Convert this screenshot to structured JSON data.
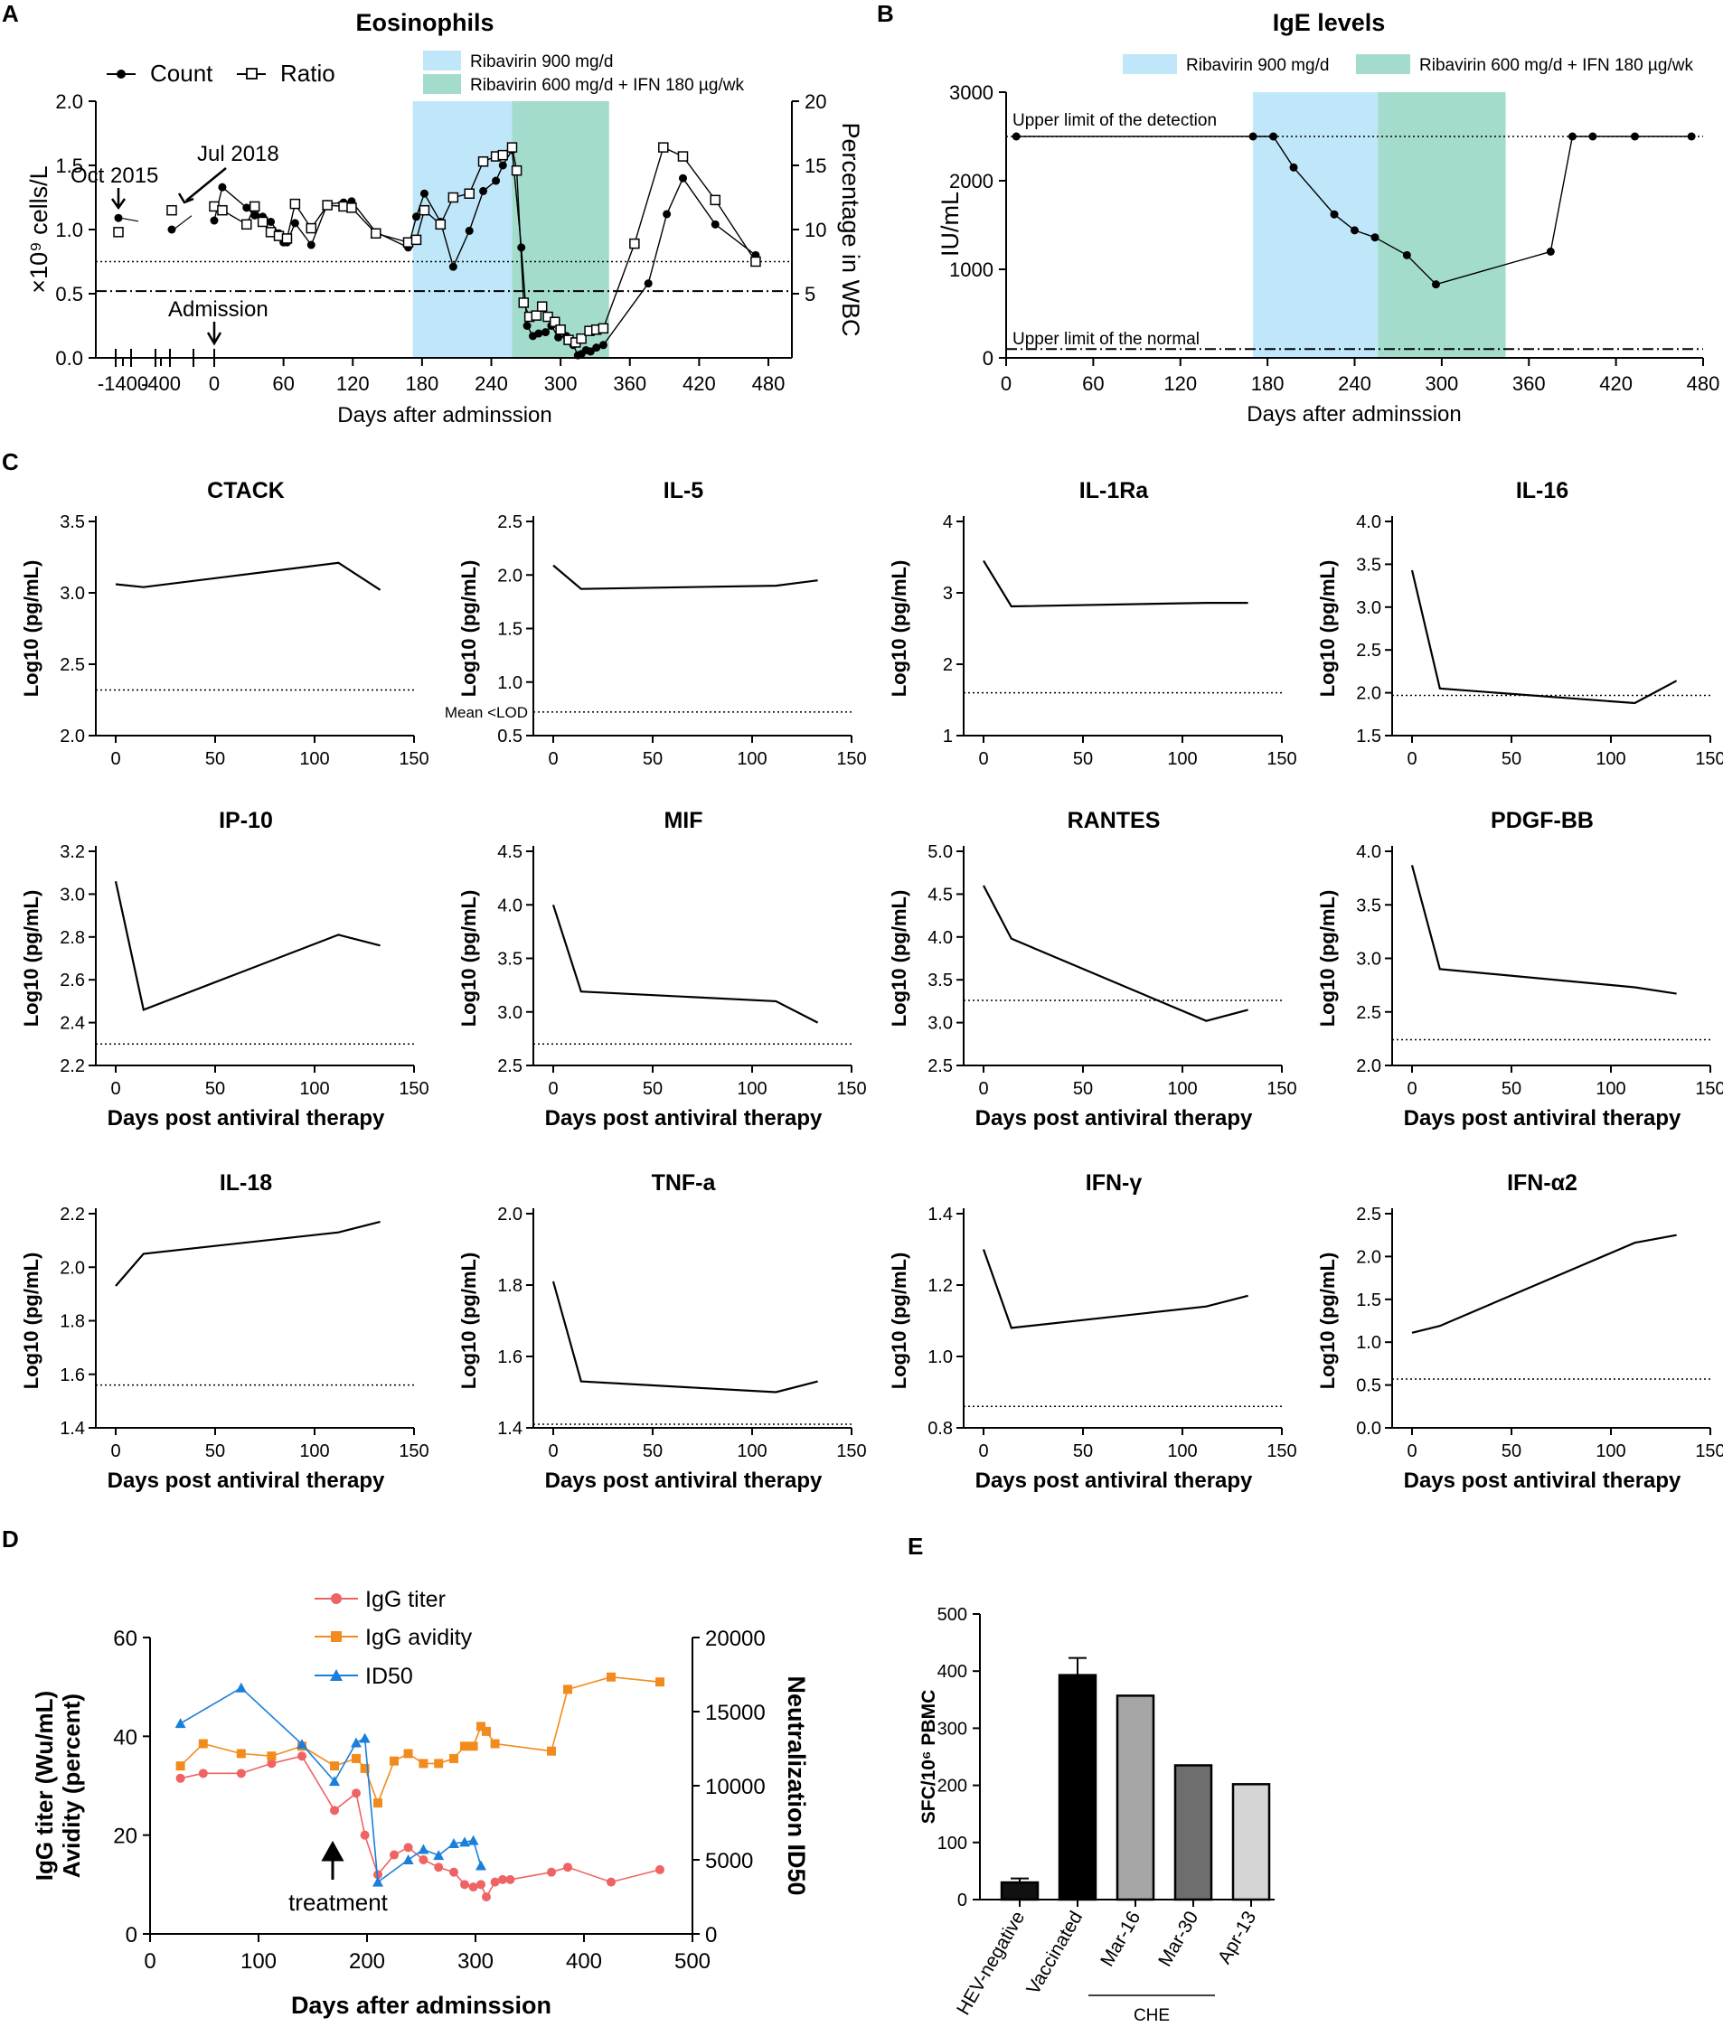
{
  "panel_letters": [
    "A",
    "B",
    "C",
    "D",
    "E"
  ],
  "chart_data": [
    {
      "id": "A",
      "type": "line",
      "title": "Eosinophils",
      "xlabel": "Days after adminssion",
      "ylabel": "×10⁹ cells/L",
      "y2label": "Percentage in WBC",
      "x_tick_labels": [
        "-1400",
        "-400",
        "0",
        "60",
        "120",
        "180",
        "240",
        "300",
        "360",
        "420",
        "480"
      ],
      "ylim": [
        0,
        2.0
      ],
      "yticks": [
        0.0,
        0.5,
        1.0,
        1.5,
        2.0
      ],
      "y2lim": [
        0,
        20
      ],
      "y2ticks": [
        5,
        10,
        15,
        20
      ],
      "legend": [
        "Count",
        "Ratio"
      ],
      "shaded_regions": [
        {
          "label": "Ribavirin 900 mg/d",
          "x": [
            172,
            258
          ],
          "color": "#bfe6f9"
        },
        {
          "label": "Ribavirin 600 mg/d + IFN 180 µg/wk",
          "x": [
            258,
            342
          ],
          "color": "#a3dccd"
        }
      ],
      "reference_lines": [
        {
          "y": 0.75,
          "style": "dotted"
        },
        {
          "y": 0.52,
          "style": "dashdot"
        }
      ],
      "annotations": [
        "Oct 2015",
        "Jul 2018",
        "Admission"
      ],
      "pre_admission_points": [
        {
          "label": "Oct 2015",
          "count": 1.09,
          "ratio_pct": 9.8
        },
        {
          "label": "Jul 2018",
          "count": 1.0,
          "ratio_pct": 11.5
        }
      ],
      "series": [
        {
          "name": "Count",
          "x": [
            0,
            7,
            28,
            35,
            42,
            49,
            56,
            60,
            63,
            70,
            84,
            98,
            112,
            119,
            140,
            168,
            175,
            182,
            196,
            207,
            221,
            233,
            244,
            250,
            258,
            266,
            271,
            276,
            281,
            287,
            292,
            298,
            305,
            311,
            315,
            318,
            322,
            326,
            331,
            337,
            376,
            392,
            406,
            434,
            469
          ],
          "values": [
            1.07,
            1.33,
            1.17,
            1.11,
            1.1,
            1.06,
            0.97,
            0.9,
            0.9,
            1.05,
            0.88,
            1.2,
            1.21,
            1.22,
            0.98,
            0.86,
            1.1,
            1.28,
            1.06,
            0.71,
            0.99,
            1.3,
            1.38,
            1.5,
            1.62,
            0.86,
            0.25,
            0.17,
            0.19,
            0.2,
            0.25,
            0.16,
            0.17,
            0.1,
            0.02,
            0.03,
            0.06,
            0.05,
            0.08,
            0.1,
            0.58,
            1.12,
            1.4,
            1.04,
            0.8
          ]
        },
        {
          "name": "Ratio",
          "x": [
            0,
            7,
            28,
            35,
            42,
            49,
            56,
            63,
            70,
            84,
            98,
            112,
            119,
            140,
            168,
            175,
            182,
            196,
            207,
            221,
            233,
            244,
            250,
            258,
            262,
            268,
            273,
            279,
            284,
            289,
            295,
            300,
            307,
            313,
            318,
            325,
            331,
            337,
            364,
            389,
            406,
            434,
            469
          ],
          "values": [
            11.8,
            11.5,
            10.4,
            11.8,
            10.6,
            9.8,
            9.5,
            9.3,
            12.0,
            10.1,
            11.9,
            11.8,
            11.7,
            9.7,
            9.0,
            9.2,
            11.5,
            10.4,
            12.5,
            12.8,
            15.3,
            15.7,
            15.8,
            16.4,
            14.6,
            4.3,
            3.2,
            3.3,
            4.0,
            3.2,
            2.8,
            2.2,
            1.4,
            1.2,
            1.5,
            2.1,
            2.2,
            2.3,
            8.9,
            16.4,
            15.7,
            12.3,
            7.5
          ]
        }
      ]
    },
    {
      "id": "B",
      "type": "line",
      "title": "IgE levels",
      "xlabel": "Days after adminssion",
      "ylabel": "IU/mL",
      "xlim": [
        0,
        480
      ],
      "xticks": [
        0,
        60,
        120,
        180,
        240,
        300,
        360,
        420,
        480
      ],
      "ylim": [
        0,
        3000
      ],
      "yticks": [
        0,
        1000,
        2000,
        3000
      ],
      "shaded_regions": [
        {
          "label": "Ribavirin 900 mg/d",
          "x": [
            170,
            256
          ],
          "color": "#bfe6f9"
        },
        {
          "label": "Ribavirin 600 mg/d + IFN 180 µg/wk",
          "x": [
            256,
            344
          ],
          "color": "#a3dccd"
        }
      ],
      "reference_lines": [
        {
          "y": 2500,
          "style": "dotted",
          "label": "Upper limit of the detection"
        },
        {
          "y": 100,
          "style": "dashdot",
          "label": "Upper limit of the normal"
        }
      ],
      "series": [
        {
          "name": "IgE",
          "x": [
            7,
            170,
            184,
            198,
            226,
            240,
            254,
            276,
            296,
            375,
            390,
            404,
            433,
            472
          ],
          "values": [
            2500,
            2500,
            2500,
            2150,
            1620,
            1440,
            1360,
            1160,
            830,
            1200,
            2500,
            2500,
            2500,
            2500
          ]
        }
      ]
    },
    {
      "id": "C",
      "type": "line",
      "xlabel": "Days post antiviral therapy",
      "ylabel": "Log10 (pg/mL)",
      "xlim": [
        -10,
        150
      ],
      "xticks": [
        0,
        50,
        100,
        150
      ],
      "panels": [
        {
          "name": "CTACK",
          "ylim": [
            2.0,
            3.5
          ],
          "yticks": [
            2.0,
            2.5,
            3.0,
            3.5
          ],
          "x": [
            0,
            14,
            112,
            133
          ],
          "values": [
            3.06,
            3.04,
            3.21,
            3.02
          ],
          "lod": 2.32
        },
        {
          "name": "IL-5",
          "ylim": [
            0.5,
            2.5
          ],
          "yticks": [
            0.5,
            1.0,
            1.5,
            2.0,
            2.5
          ],
          "x": [
            0,
            14,
            112,
            133
          ],
          "values": [
            2.09,
            1.87,
            1.9,
            1.95
          ],
          "lod": 0.72,
          "lod_label": "Mean <LOD"
        },
        {
          "name": "IL-1Ra",
          "ylim": [
            1,
            4
          ],
          "yticks": [
            1,
            2,
            3,
            4
          ],
          "x": [
            0,
            14,
            112,
            133
          ],
          "values": [
            3.45,
            2.81,
            2.86,
            2.86
          ],
          "lod": 1.6
        },
        {
          "name": "IL-16",
          "ylim": [
            1.5,
            4.0
          ],
          "yticks": [
            1.5,
            2.0,
            2.5,
            3.0,
            3.5,
            4.0
          ],
          "x": [
            0,
            14,
            112,
            133
          ],
          "values": [
            3.43,
            2.05,
            1.88,
            2.14
          ],
          "lod": 1.97
        },
        {
          "name": "IP-10",
          "ylim": [
            2.2,
            3.2
          ],
          "yticks": [
            2.2,
            2.4,
            2.6,
            2.8,
            3.0,
            3.2
          ],
          "x": [
            0,
            14,
            112,
            133
          ],
          "values": [
            3.06,
            2.46,
            2.81,
            2.76
          ],
          "lod": 2.3
        },
        {
          "name": "MIF",
          "ylim": [
            2.5,
            4.5
          ],
          "yticks": [
            2.5,
            3.0,
            3.5,
            4.0,
            4.5
          ],
          "x": [
            0,
            14,
            112,
            133
          ],
          "values": [
            4.0,
            3.19,
            3.1,
            2.9
          ],
          "lod": 2.7
        },
        {
          "name": "RANTES",
          "ylim": [
            2.5,
            5.0
          ],
          "yticks": [
            2.5,
            3.0,
            3.5,
            4.0,
            4.5,
            5.0
          ],
          "x": [
            0,
            14,
            112,
            133
          ],
          "values": [
            4.6,
            3.98,
            3.02,
            3.15
          ],
          "lod": 3.26
        },
        {
          "name": "PDGF-BB",
          "ylim": [
            2.0,
            4.0
          ],
          "yticks": [
            2.0,
            2.5,
            3.0,
            3.5,
            4.0
          ],
          "x": [
            0,
            14,
            112,
            133
          ],
          "values": [
            3.87,
            2.9,
            2.73,
            2.67
          ],
          "lod": 2.24
        },
        {
          "name": "IL-18",
          "ylim": [
            1.4,
            2.2
          ],
          "yticks": [
            1.4,
            1.6,
            1.8,
            2.0,
            2.2
          ],
          "x": [
            0,
            14,
            112,
            133
          ],
          "values": [
            1.93,
            2.05,
            2.13,
            2.17
          ],
          "lod": 1.56
        },
        {
          "name": "TNF-a",
          "ylim": [
            1.4,
            2.0
          ],
          "yticks": [
            1.4,
            1.6,
            1.8,
            2.0
          ],
          "x": [
            0,
            14,
            112,
            133
          ],
          "values": [
            1.81,
            1.53,
            1.5,
            1.53
          ],
          "lod": 1.41
        },
        {
          "name": "IFN-γ",
          "ylim": [
            0.8,
            1.4
          ],
          "yticks": [
            0.8,
            1.0,
            1.2,
            1.4
          ],
          "x": [
            0,
            14,
            112,
            133
          ],
          "values": [
            1.3,
            1.08,
            1.14,
            1.17
          ],
          "lod": 0.86
        },
        {
          "name": "IFN-α2",
          "ylim": [
            0.0,
            2.5
          ],
          "yticks": [
            0.0,
            0.5,
            1.0,
            1.5,
            2.0,
            2.5
          ],
          "x": [
            0,
            14,
            112,
            133
          ],
          "values": [
            1.11,
            1.19,
            2.16,
            2.25
          ],
          "lod": 0.57
        }
      ]
    },
    {
      "id": "D",
      "type": "line",
      "xlabel": "Days after adminssion",
      "ylabel": "IgG titer (Wu/mL)",
      "ylabel2": "Avidity (percent)",
      "y2label": "Neutralization ID50",
      "xlim": [
        0,
        500
      ],
      "xticks": [
        0,
        100,
        200,
        300,
        400,
        500
      ],
      "ylim": [
        0,
        60
      ],
      "yticks": [
        0,
        20,
        40,
        60
      ],
      "y2lim": [
        0,
        20000
      ],
      "y2ticks": [
        0,
        5000,
        10000,
        15000,
        20000
      ],
      "annotations": [
        "treatment"
      ],
      "series": [
        {
          "name": "IgG titer",
          "color": "#ee6364",
          "marker": "circle",
          "axis": "left",
          "x": [
            28,
            49,
            84,
            112,
            140,
            170,
            190,
            198,
            210,
            225,
            238,
            252,
            266,
            280,
            290,
            298,
            305,
            310,
            318,
            325,
            332,
            370,
            385,
            425,
            470
          ],
          "values": [
            31.5,
            32.5,
            32.5,
            34.5,
            36,
            25,
            28.5,
            20,
            12,
            16,
            17.5,
            15,
            13.5,
            12.5,
            10,
            9.5,
            10,
            7.5,
            10.5,
            11,
            11,
            12.5,
            13.5,
            10.5,
            13
          ]
        },
        {
          "name": "IgG avidity",
          "color": "#f28b1d",
          "marker": "square",
          "axis": "left",
          "x": [
            28,
            49,
            84,
            112,
            140,
            170,
            190,
            198,
            210,
            225,
            238,
            252,
            266,
            280,
            290,
            298,
            305,
            310,
            318,
            370,
            385,
            425,
            470
          ],
          "values": [
            34,
            38.5,
            36.5,
            36,
            38,
            34,
            35.5,
            33.5,
            26.5,
            35,
            36.5,
            34.5,
            34.5,
            35.5,
            38,
            38,
            42,
            41,
            38.5,
            37,
            49.5,
            52,
            51
          ]
        },
        {
          "name": "ID50",
          "color": "#1a7fdb",
          "marker": "triangle",
          "axis": "right",
          "x": [
            28,
            84,
            140,
            170,
            190,
            198,
            210,
            238,
            252,
            266,
            280,
            290,
            298,
            305
          ],
          "values": [
            14200,
            16600,
            12800,
            10300,
            12900,
            13200,
            3500,
            5000,
            5700,
            5300,
            6100,
            6200,
            6300,
            4600
          ]
        }
      ]
    },
    {
      "id": "E",
      "type": "bar",
      "ylabel": "SFC/10⁶ PBMC",
      "ylim": [
        0,
        500
      ],
      "yticks": [
        0,
        100,
        200,
        300,
        400,
        500
      ],
      "categories": [
        "HEV-negative",
        "Vaccinated",
        "Mar-16",
        "Mar-30",
        "Apr-13"
      ],
      "values": [
        30,
        393,
        357,
        235,
        202
      ],
      "errors": [
        7,
        30,
        0,
        0,
        0
      ],
      "colors": [
        "#111111",
        "#000000",
        "#a6a6a6",
        "#6e6e6e",
        "#d5d5d5"
      ],
      "group_label": "CHE"
    }
  ]
}
